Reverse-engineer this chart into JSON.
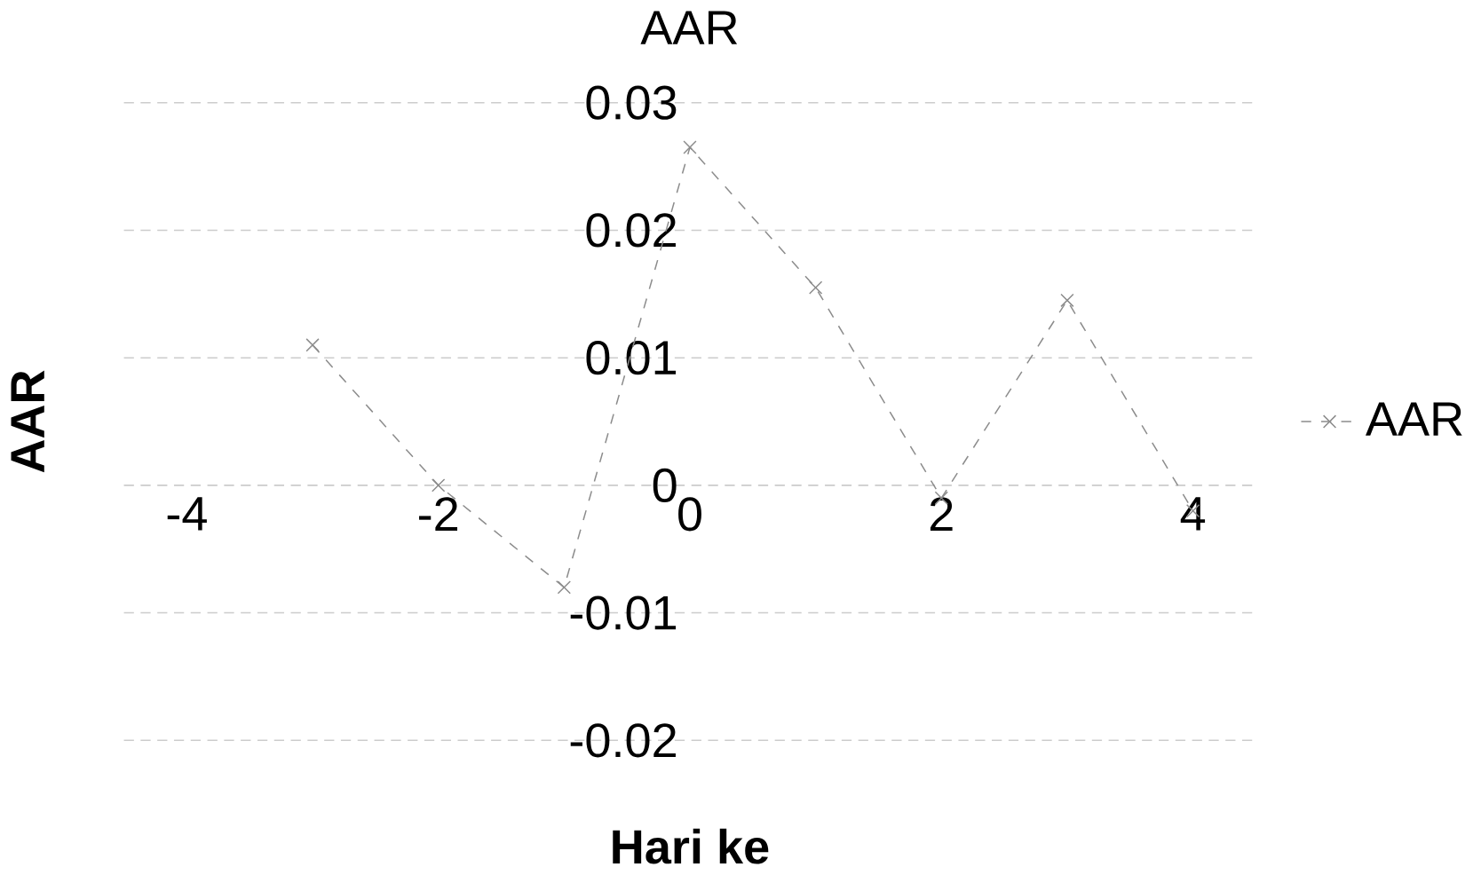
{
  "chart_data": {
    "type": "line",
    "title": "AAR",
    "xlabel": "Hari ke",
    "ylabel": "AAR",
    "x": [
      -3,
      -2,
      -1,
      0,
      1,
      2,
      3,
      4
    ],
    "series": [
      {
        "name": "AAR",
        "color": "#8c8c8c",
        "values": [
          0.011,
          0.0,
          -0.008,
          0.0265,
          0.0155,
          -0.001,
          0.0145,
          -0.002
        ]
      }
    ],
    "xlim": [
      -4.5,
      4.5
    ],
    "ylim": [
      -0.02,
      0.03
    ],
    "xticks": [
      -4,
      -2,
      0,
      2,
      4
    ],
    "yticks": [
      -0.02,
      -0.01,
      0,
      0.01,
      0.02,
      0.03
    ],
    "grid": "y",
    "legend": "right",
    "marker": "cross",
    "line_style": "dashed"
  }
}
